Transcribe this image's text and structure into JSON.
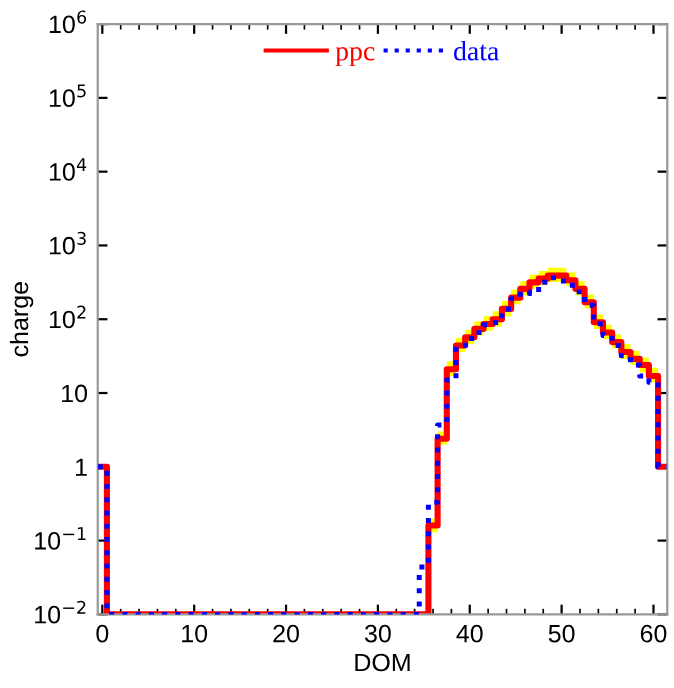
{
  "chart_data": {
    "type": "step",
    "xlabel": "DOM",
    "ylabel": "charge",
    "x": [
      0,
      1,
      2,
      3,
      4,
      5,
      6,
      7,
      8,
      9,
      10,
      11,
      12,
      13,
      14,
      15,
      16,
      17,
      18,
      19,
      20,
      21,
      22,
      23,
      24,
      25,
      26,
      27,
      28,
      29,
      30,
      31,
      32,
      33,
      34,
      35,
      36,
      37,
      38,
      39,
      40,
      41,
      42,
      43,
      44,
      45,
      46,
      47,
      48,
      49,
      50,
      51,
      52,
      53,
      54,
      55,
      56,
      57,
      58,
      59,
      60,
      61
    ],
    "series": [
      {
        "name": "ppc",
        "color": "#ff0000",
        "line_style": "solid",
        "values": [
          1,
          0.01,
          0.01,
          0.01,
          0.01,
          0.01,
          0.01,
          0.01,
          0.01,
          0.01,
          0.01,
          0.01,
          0.01,
          0.01,
          0.01,
          0.01,
          0.01,
          0.01,
          0.01,
          0.01,
          0.01,
          0.01,
          0.01,
          0.01,
          0.01,
          0.01,
          0.01,
          0.01,
          0.01,
          0.01,
          0.01,
          0.01,
          0.01,
          0.01,
          0.01,
          0.01,
          0.16,
          2.4,
          21,
          44,
          57,
          74,
          86,
          100,
          138,
          196,
          258,
          316,
          355,
          390,
          390,
          338,
          258,
          170,
          91,
          66,
          49,
          36,
          29,
          24,
          17,
          1
        ],
        "upper": [
          null,
          null,
          null,
          null,
          null,
          null,
          null,
          null,
          null,
          null,
          null,
          null,
          null,
          null,
          null,
          null,
          null,
          null,
          null,
          null,
          null,
          null,
          null,
          null,
          null,
          null,
          null,
          null,
          null,
          null,
          null,
          null,
          null,
          null,
          null,
          null,
          0.2,
          3,
          27,
          56,
          72,
          94,
          110,
          128,
          176,
          250,
          330,
          400,
          450,
          500,
          500,
          430,
          330,
          216,
          116,
          84,
          62,
          46,
          37,
          30,
          22,
          null
        ],
        "lower": [
          null,
          null,
          null,
          null,
          null,
          null,
          null,
          null,
          null,
          null,
          null,
          null,
          null,
          null,
          null,
          null,
          null,
          null,
          null,
          null,
          null,
          null,
          null,
          null,
          null,
          null,
          null,
          null,
          null,
          null,
          null,
          null,
          null,
          null,
          null,
          null,
          0.13,
          2,
          17,
          36,
          46,
          60,
          70,
          80,
          110,
          160,
          210,
          260,
          290,
          320,
          320,
          280,
          210,
          140,
          74,
          54,
          40,
          29,
          24,
          19,
          14,
          null
        ]
      },
      {
        "name": "data",
        "color": "#0000ff",
        "line_style": "dotted",
        "values": [
          1,
          0.01,
          0.01,
          0.01,
          0.01,
          0.01,
          0.01,
          0.01,
          0.01,
          0.01,
          0.01,
          0.01,
          0.01,
          0.01,
          0.01,
          0.01,
          0.01,
          0.01,
          0.01,
          0.01,
          0.01,
          0.01,
          0.01,
          0.01,
          0.01,
          0.01,
          0.01,
          0.01,
          0.01,
          0.01,
          0.01,
          0.01,
          0.01,
          0.01,
          0.01,
          0.044,
          0.33,
          3.7,
          15,
          44,
          55,
          66,
          84,
          90,
          138,
          190,
          236,
          224,
          316,
          365,
          330,
          288,
          236,
          155,
          87,
          60,
          44,
          32,
          24,
          17,
          14,
          1
        ]
      }
    ],
    "xlim": [
      -0.5,
      61.5
    ],
    "xticks": [
      0,
      10,
      20,
      30,
      40,
      50,
      60
    ],
    "log": "y",
    "ylim": [
      0.01,
      1000000
    ],
    "yticks": [
      {
        "value": 0.01,
        "label": "10$^{−2}$"
      },
      {
        "value": 0.1,
        "label": "10$^{−1}$"
      },
      1,
      10,
      {
        "value": 100,
        "label": "10$^{2}$"
      },
      {
        "value": 1000,
        "label": "10$^{3}$"
      },
      {
        "value": 10000,
        "label": "10$^{4}$"
      },
      {
        "value": 100000,
        "label": "10$^{5}$"
      },
      {
        "value": 1000000,
        "label": "10$^{6}$"
      }
    ],
    "legend": "top",
    "grid": false
  }
}
